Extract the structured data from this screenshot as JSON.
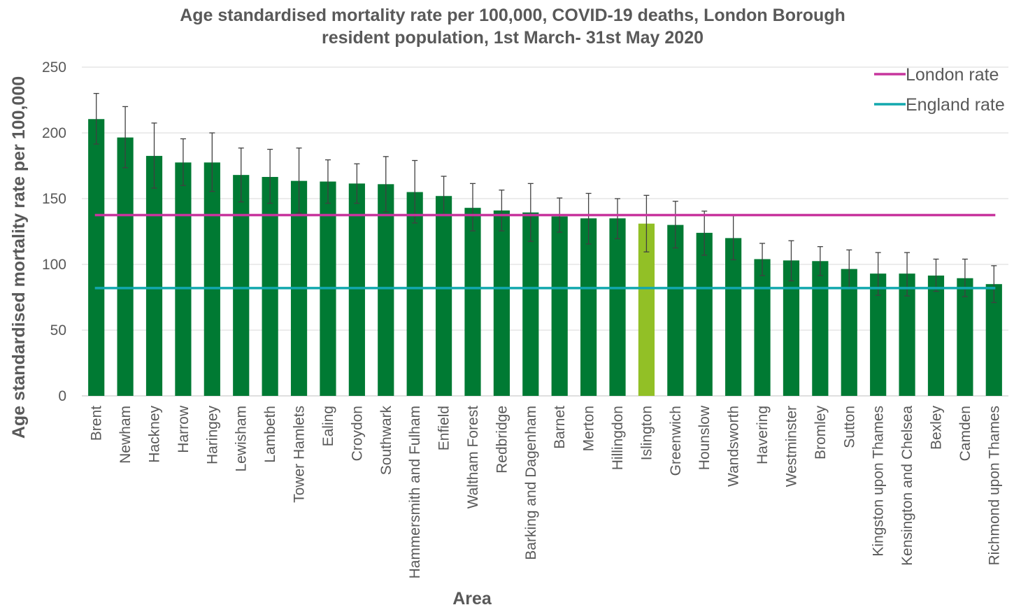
{
  "chart_data": {
    "type": "bar",
    "title": [
      "Age standardised mortality rate per 100,000, COVID-19 deaths, London Borough",
      "resident population, 1st March- 31st May 2020"
    ],
    "xlabel": "Area",
    "ylabel": "Age standardised mortality rate per 100,000",
    "ylim": [
      0,
      250
    ],
    "yticks": [
      0,
      50,
      100,
      150,
      200,
      250
    ],
    "grid": true,
    "legend_position": "top-right",
    "colors": {
      "bar": "#007a33",
      "highlight": "#92c026",
      "london_line": "#c7359d",
      "england_line": "#12a8ae"
    },
    "highlight_category": "Islington",
    "categories": [
      "Brent",
      "Newham",
      "Hackney",
      "Harrow",
      "Haringey",
      "Lewisham",
      "Lambeth",
      "Tower Hamlets",
      "Ealing",
      "Croydon",
      "Southwark",
      "Hammersmith and Fulham",
      "Enfield",
      "Waltham Forest",
      "Redbridge",
      "Barking and Dagenham",
      "Barnet",
      "Merton",
      "Hillingdon",
      "Islington",
      "Greenwich",
      "Hounslow",
      "Wandsworth",
      "Havering",
      "Westminster",
      "Bromley",
      "Sutton",
      "Kingston upon Thames",
      "Kensington and Chelsea",
      "Bexley",
      "Camden",
      "Richmond upon Thames"
    ],
    "values": [
      210.5,
      196.5,
      182.5,
      177.5,
      177.5,
      168,
      166.5,
      163.5,
      163,
      161.5,
      161,
      155,
      152,
      143,
      141,
      139.5,
      136.5,
      135,
      135,
      131,
      130,
      124,
      120,
      104,
      103,
      102.5,
      96.5,
      93,
      93,
      91.5,
      89.5,
      85
    ],
    "error_low": [
      191.5,
      173.5,
      158,
      160,
      155.5,
      147.5,
      146.5,
      139,
      146.5,
      146.5,
      140,
      131.5,
      137.5,
      125.5,
      125.5,
      117.5,
      124.5,
      115.5,
      119.5,
      109.5,
      112.5,
      107,
      103.5,
      91.5,
      87.5,
      91.5,
      82,
      76.5,
      76,
      79.5,
      75.5,
      71
    ],
    "error_high": [
      230,
      220,
      207.5,
      195.5,
      200,
      188.5,
      187.5,
      188.5,
      179.5,
      176.5,
      182,
      179,
      167,
      161.5,
      156.5,
      161.5,
      150.5,
      154,
      150,
      152.5,
      148,
      140.5,
      137,
      116,
      118,
      113.5,
      111,
      109,
      109,
      104,
      104,
      99
    ],
    "series": [
      {
        "name": "London rate",
        "type": "hline",
        "value": 137.5
      },
      {
        "name": "England rate",
        "type": "hline",
        "value": 82
      }
    ]
  }
}
